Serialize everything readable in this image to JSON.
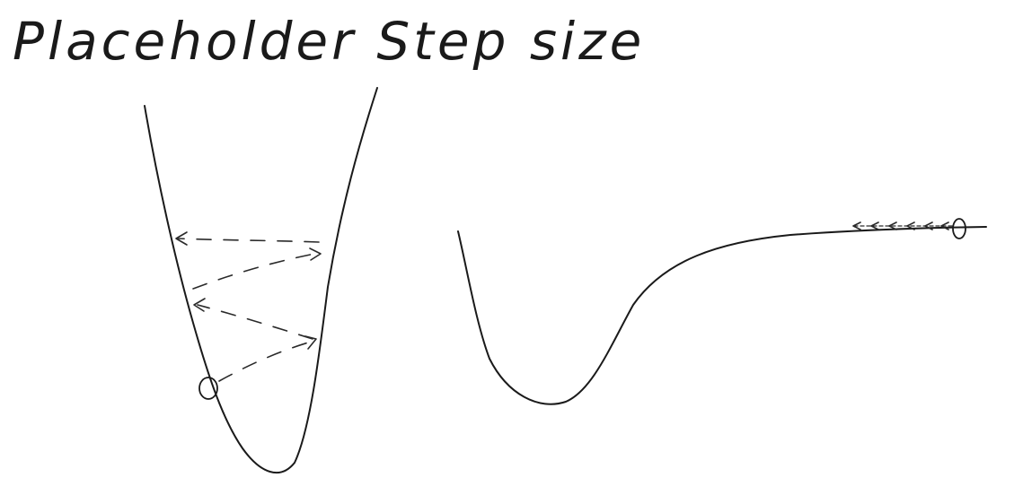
{
  "title": "Placeholder Step size",
  "diagram": {
    "left_panel": {
      "shape": "narrow-valley",
      "marker": "start-point-circle",
      "steps": "large-oscillating-steps"
    },
    "right_panel": {
      "shape": "valley-with-flat-plateau",
      "marker": "start-point-circle",
      "steps": "many-tiny-steps"
    },
    "colors": {
      "ink": "#1a1a1a",
      "background": "#ffffff"
    }
  }
}
